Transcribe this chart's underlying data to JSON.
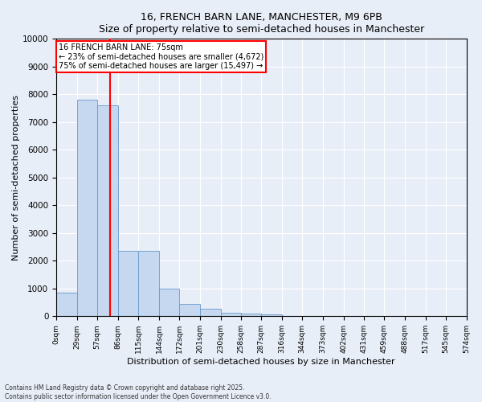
{
  "title_line1": "16, FRENCH BARN LANE, MANCHESTER, M9 6PB",
  "title_line2": "Size of property relative to semi-detached houses in Manchester",
  "xlabel": "Distribution of semi-detached houses by size in Manchester",
  "ylabel": "Number of semi-detached properties",
  "bar_color": "#c5d8f0",
  "bar_edge_color": "#6699cc",
  "vline_color": "red",
  "vline_x": 75,
  "annotation_title": "16 FRENCH BARN LANE: 75sqm",
  "annotation_line2": "← 23% of semi-detached houses are smaller (4,672)",
  "annotation_line3": "75% of semi-detached houses are larger (15,497) →",
  "bin_edges": [
    0,
    29,
    57,
    86,
    115,
    144,
    172,
    201,
    230,
    258,
    287,
    316,
    344,
    373,
    402,
    431,
    459,
    488,
    517,
    545,
    574
  ],
  "bin_counts": [
    850,
    7800,
    7600,
    2350,
    2350,
    1000,
    450,
    280,
    130,
    110,
    55,
    20,
    10,
    5,
    2,
    1,
    1,
    0,
    0,
    0
  ],
  "ylim": [
    0,
    10000
  ],
  "ytick_step": 1000,
  "background_color": "#e8eef8",
  "footer_line1": "Contains HM Land Registry data © Crown copyright and database right 2025.",
  "footer_line2": "Contains public sector information licensed under the Open Government Licence v3.0.",
  "grid_color": "#ffffff",
  "annotation_box_color": "#ffffff",
  "annotation_box_edge_color": "red"
}
